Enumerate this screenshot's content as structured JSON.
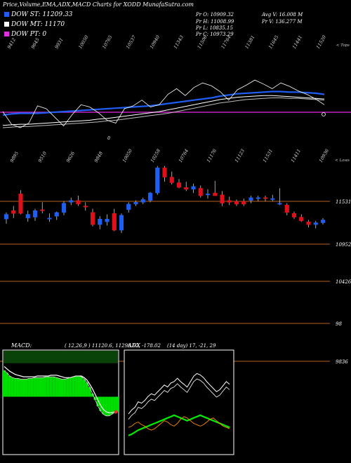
{
  "title": "Price,Volume,EMA,ADX,MACD Charts for XODD MunafaSutra.com",
  "legend": [
    {
      "label": "DOW ST: 11209.33",
      "color": "#1e5ef5"
    },
    {
      "label": "DOW MT: 11170",
      "color": "#ffffff"
    },
    {
      "label": "DOW PT: 0",
      "color": "#e030e0"
    }
  ],
  "quote": {
    "pr_o": "Pr   O: 10909.32",
    "pr_h": "Pr   H: 11008.99",
    "pr_l": "Pr   L: 10835.15",
    "pr_c": "Pr   C: 10973.29",
    "avg_v": "Avg V: 16.008 M",
    "pr_v": "Pr   V: 136.277 M"
  },
  "colors": {
    "background": "#000000",
    "ema_blue": "#1e5ef5",
    "ema_white": "#ffffff",
    "pt_line": "#c020c0",
    "level_line": "#b8621b",
    "up_candle": "#1e5ef5",
    "down_candle": "#e0101a",
    "macd_fill": "#00dd00",
    "adx_green": "#00ee00",
    "adx_orange": "#ff8800"
  },
  "chart_data": [
    {
      "type": "line",
      "panel": "EMA",
      "corner_label": "< Tops",
      "top_labels": [
        "9412",
        "9645",
        "9931",
        "10050",
        "10765",
        "10537",
        "10940",
        "11343",
        "11506",
        "11764",
        "11381",
        "11645",
        "11441",
        "11520"
      ],
      "bottom_labels": [
        "9895",
        "9510",
        "9626",
        "9848",
        "10050",
        "10258",
        "10764",
        "11176",
        "11123",
        "11531",
        "11411",
        "10936"
      ],
      "marker_label": "0",
      "series": [
        {
          "values": [
            44,
            46,
            47,
            47,
            47,
            48,
            49,
            50,
            51,
            52,
            53,
            54,
            55,
            56,
            57,
            58,
            59,
            60,
            62,
            64,
            66,
            68,
            70,
            72,
            74,
            77,
            79,
            81,
            82,
            83,
            84,
            85,
            85,
            84,
            84,
            83,
            82,
            80
          ]
        },
        {
          "values": [
            26,
            27,
            28,
            28,
            29,
            30,
            31,
            32,
            33,
            34,
            35,
            37,
            38,
            40,
            42,
            44,
            46,
            48,
            50,
            53,
            56,
            59,
            62,
            65,
            68,
            71,
            73,
            75,
            76,
            77,
            78,
            78,
            77,
            76,
            75,
            74,
            73,
            72
          ]
        },
        {
          "values": [
            22,
            23,
            24,
            24,
            25,
            26,
            27,
            28,
            29,
            30,
            31,
            32,
            34,
            35,
            37,
            39,
            41,
            43,
            45,
            47,
            50,
            53,
            56,
            59,
            62,
            65,
            67,
            69,
            71,
            72,
            73,
            74,
            74,
            73,
            73,
            72,
            71,
            70
          ]
        },
        {
          "values": [
            50,
            28,
            22,
            30,
            60,
            55,
            40,
            25,
            45,
            62,
            58,
            48,
            35,
            30,
            55,
            60,
            70,
            58,
            62,
            80,
            90,
            78,
            92,
            100,
            95,
            85,
            70,
            88,
            96,
            105,
            98,
            90,
            100,
            94,
            86,
            80,
            72,
            62
          ]
        }
      ]
    },
    {
      "type": "candlestick",
      "panel": "Price",
      "corner_label": "< Lows",
      "price_levels": [
        "11531",
        "10952",
        "10426",
        "98",
        "9836"
      ],
      "candles": [
        {
          "o": 10810,
          "h": 10880,
          "l": 10760,
          "c": 10860
        },
        {
          "o": 10900,
          "h": 10950,
          "l": 10820,
          "c": 10870
        },
        {
          "o": 11080,
          "h": 11120,
          "l": 10860,
          "c": 10870
        },
        {
          "o": 10820,
          "h": 10900,
          "l": 10780,
          "c": 10860
        },
        {
          "o": 10830,
          "h": 10920,
          "l": 10790,
          "c": 10900
        },
        {
          "o": 10910,
          "h": 10990,
          "l": 10870,
          "c": 10900
        },
        {
          "o": 10810,
          "h": 10870,
          "l": 10780,
          "c": 10820
        },
        {
          "o": 10840,
          "h": 10890,
          "l": 10800,
          "c": 10880
        },
        {
          "o": 10880,
          "h": 11000,
          "l": 10850,
          "c": 10980
        },
        {
          "o": 10990,
          "h": 11040,
          "l": 10960,
          "c": 11010
        },
        {
          "o": 11010,
          "h": 11060,
          "l": 10950,
          "c": 10970
        },
        {
          "o": 10950,
          "h": 10990,
          "l": 10900,
          "c": 10940
        },
        {
          "o": 10880,
          "h": 10920,
          "l": 10730,
          "c": 10750
        },
        {
          "o": 10750,
          "h": 10840,
          "l": 10700,
          "c": 10810
        },
        {
          "o": 10780,
          "h": 10860,
          "l": 10740,
          "c": 10810
        },
        {
          "o": 10870,
          "h": 10920,
          "l": 10680,
          "c": 10690
        },
        {
          "o": 10690,
          "h": 10870,
          "l": 10660,
          "c": 10850
        },
        {
          "o": 10910,
          "h": 10990,
          "l": 10880,
          "c": 10970
        },
        {
          "o": 10970,
          "h": 11010,
          "l": 10950,
          "c": 10990
        },
        {
          "o": 10990,
          "h": 11040,
          "l": 10970,
          "c": 11020
        },
        {
          "o": 11010,
          "h": 11100,
          "l": 10990,
          "c": 11090
        },
        {
          "o": 11090,
          "h": 11380,
          "l": 11070,
          "c": 11360
        },
        {
          "o": 11360,
          "h": 11380,
          "l": 11210,
          "c": 11260
        },
        {
          "o": 11260,
          "h": 11320,
          "l": 11180,
          "c": 11200
        },
        {
          "o": 11200,
          "h": 11240,
          "l": 11140,
          "c": 11150
        },
        {
          "o": 11150,
          "h": 11210,
          "l": 11110,
          "c": 11130
        },
        {
          "o": 11130,
          "h": 11190,
          "l": 11090,
          "c": 11160
        },
        {
          "o": 11140,
          "h": 11170,
          "l": 11040,
          "c": 11060
        },
        {
          "o": 11070,
          "h": 11130,
          "l": 11030,
          "c": 11080
        },
        {
          "o": 11090,
          "h": 11220,
          "l": 11060,
          "c": 11060
        },
        {
          "o": 11070,
          "h": 11110,
          "l": 10950,
          "c": 10980
        },
        {
          "o": 11010,
          "h": 11050,
          "l": 10960,
          "c": 10990
        },
        {
          "o": 11000,
          "h": 11020,
          "l": 10950,
          "c": 10970
        },
        {
          "o": 11000,
          "h": 11030,
          "l": 10950,
          "c": 10970
        },
        {
          "o": 11010,
          "h": 11060,
          "l": 10980,
          "c": 11040
        },
        {
          "o": 11030,
          "h": 11060,
          "l": 11000,
          "c": 11040
        },
        {
          "o": 11040,
          "h": 11060,
          "l": 11000,
          "c": 11030
        },
        {
          "o": 11030,
          "h": 11070,
          "l": 11000,
          "c": 11030
        },
        {
          "o": 10980,
          "h": 11140,
          "l": 10960,
          "c": 10980
        },
        {
          "o": 10960,
          "h": 10980,
          "l": 10850,
          "c": 10880
        },
        {
          "o": 10870,
          "h": 10890,
          "l": 10810,
          "c": 10830
        },
        {
          "o": 10830,
          "h": 10860,
          "l": 10780,
          "c": 10790
        },
        {
          "o": 10780,
          "h": 10800,
          "l": 10720,
          "c": 10750
        },
        {
          "o": 10750,
          "h": 10790,
          "l": 10710,
          "c": 10770
        },
        {
          "o": 10770,
          "h": 10820,
          "l": 10750,
          "c": 10800
        }
      ]
    },
    {
      "type": "area",
      "panel": "MACD",
      "label": "MACD:",
      "params": "( 12,26,9 ) 11120.6,  11298.62,  -178.02",
      "macd_line": [
        95,
        92,
        88,
        86,
        85,
        85,
        84,
        84,
        84,
        85,
        85,
        86,
        86,
        86,
        86,
        87,
        87,
        87,
        87,
        86,
        85,
        84,
        84,
        85,
        86,
        87,
        88,
        88,
        87,
        84,
        80,
        74,
        66,
        58,
        50,
        44,
        40,
        38,
        38,
        40,
        42,
        43
      ],
      "signal_line": [
        100,
        97,
        94,
        92,
        90,
        89,
        88,
        87,
        87,
        87,
        87,
        87,
        88,
        88,
        88,
        88,
        88,
        89,
        89,
        89,
        88,
        87,
        86,
        86,
        86,
        87,
        88,
        88,
        88,
        86,
        83,
        78,
        72,
        65,
        58,
        51,
        46,
        43,
        42,
        42,
        43,
        44
      ]
    },
    {
      "type": "line",
      "panel": "ADX",
      "label": "ADX",
      "params": "(14  day) 17,  -21,  29",
      "di_plus": [
        52,
        58,
        62,
        70,
        68,
        72,
        78,
        82,
        80,
        85,
        90,
        95,
        92,
        98,
        100,
        105,
        100,
        96,
        92,
        100,
        108,
        112,
        110,
        106,
        100,
        95,
        90,
        85,
        88,
        94,
        100,
        96
      ],
      "di_minus": [
        20,
        22,
        25,
        28,
        30,
        32,
        34,
        36,
        38,
        40,
        42,
        44,
        46,
        48,
        50,
        48,
        46,
        44,
        42,
        44,
        46,
        48,
        50,
        48,
        46,
        44,
        42,
        40,
        38,
        36,
        34,
        32
      ],
      "adx": [
        32,
        34,
        38,
        40,
        36,
        34,
        30,
        28,
        30,
        34,
        38,
        42,
        40,
        36,
        34,
        38,
        44,
        48,
        46,
        42,
        38,
        36,
        34,
        36,
        40,
        44,
        46,
        42,
        38,
        34,
        32,
        30
      ]
    }
  ]
}
